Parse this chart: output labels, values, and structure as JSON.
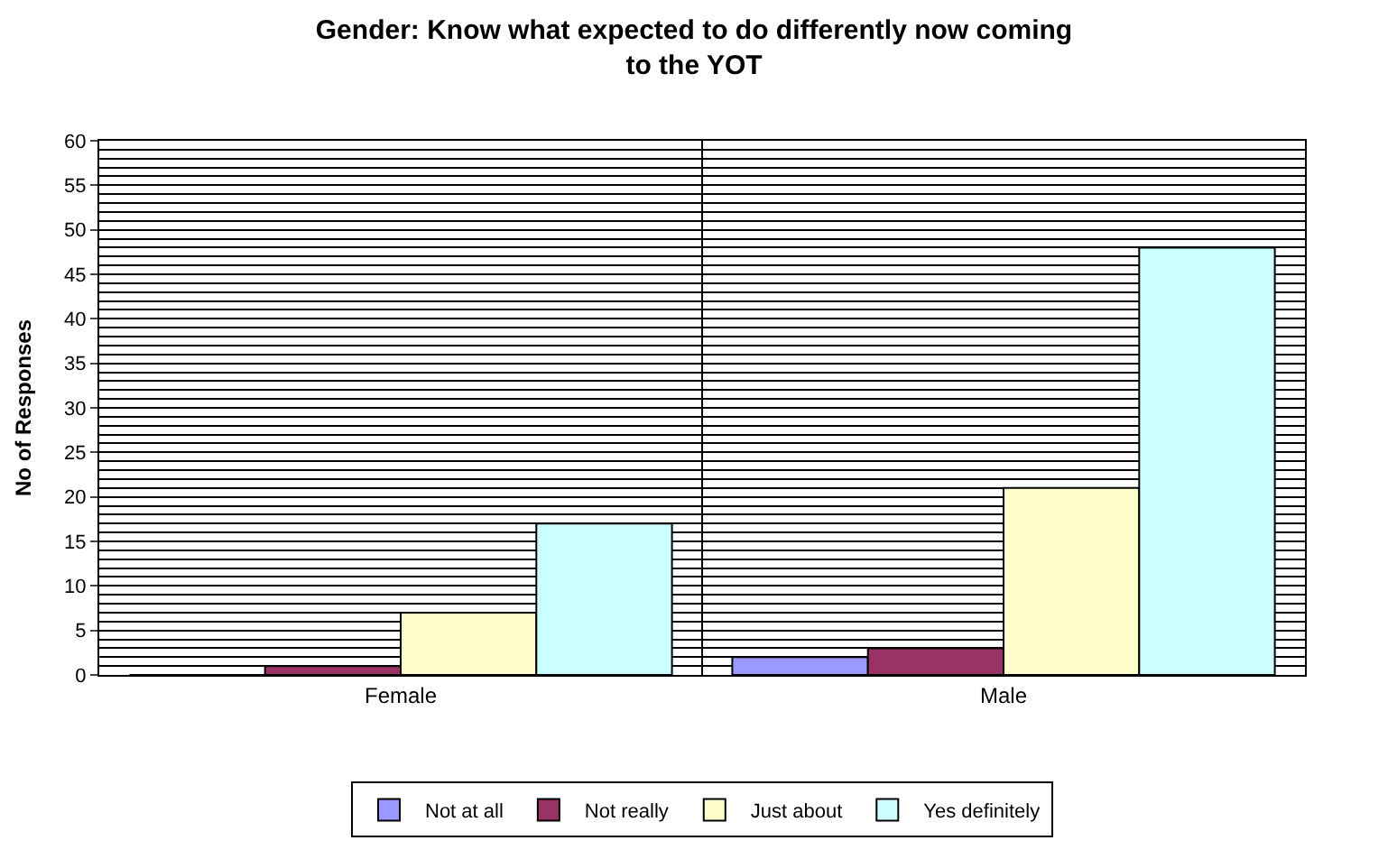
{
  "chart_data": {
    "type": "bar",
    "title": "Gender: Know what expected to do differently now coming\nto the YOT",
    "ylabel": "No of Responses",
    "categories": [
      "Female",
      "Male"
    ],
    "series": [
      {
        "name": "Not at all",
        "color": "#9999ff",
        "values": [
          0,
          2
        ]
      },
      {
        "name": "Not really",
        "color": "#993366",
        "values": [
          1,
          3
        ]
      },
      {
        "name": "Just about",
        "color": "#ffffcc",
        "values": [
          7,
          21
        ]
      },
      {
        "name": "Yes definitely",
        "color": "#ccffff",
        "values": [
          17,
          48
        ]
      }
    ],
    "ylim": [
      0,
      60
    ],
    "yticks": [
      0,
      5,
      10,
      15,
      20,
      25,
      30,
      35,
      40,
      45,
      50,
      55,
      60
    ],
    "grid": true,
    "legend": "bottom"
  }
}
